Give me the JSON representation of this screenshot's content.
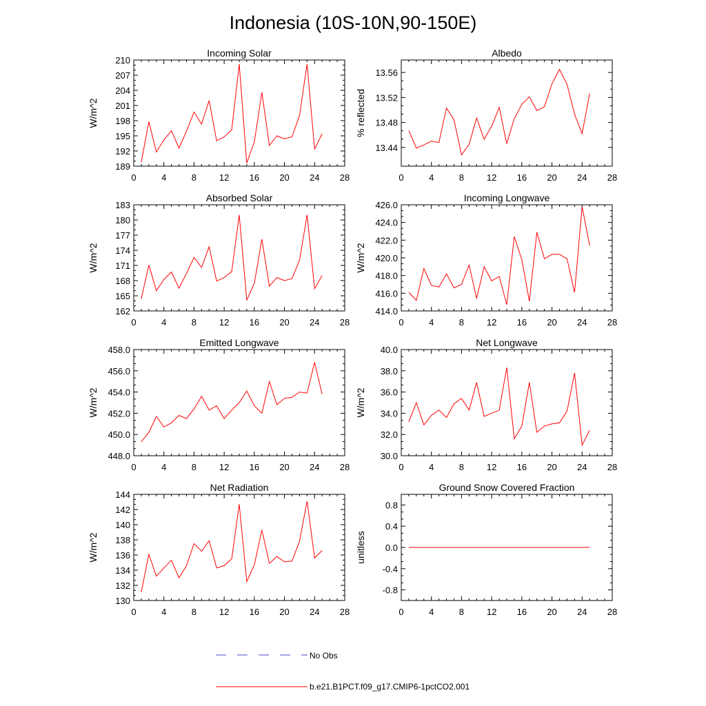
{
  "figure_title": "Indonesia (10S-10N,90-150E)",
  "colors": {
    "model": "#ff0000",
    "obs": "#4a4ac8",
    "axis": "#000000"
  },
  "legend": {
    "obs_label": "No Obs",
    "model_label": "b.e21.B1PCT.f09_g17.CMIP6-1pctCO2.001"
  },
  "chart_data": [
    {
      "type": "line",
      "title": "Incoming Solar",
      "ylabel": "W/m^2",
      "xlabel": "",
      "xlim": [
        0,
        28
      ],
      "xticks": [
        "0",
        "4",
        "8",
        "12",
        "16",
        "20",
        "24",
        "28"
      ],
      "ylim": [
        189,
        210
      ],
      "yticks": [
        "189",
        "192",
        "195",
        "198",
        "201",
        "204",
        "207",
        "210"
      ],
      "grid": false,
      "series": [
        {
          "name": "b.e21.B1PCT.f09_g17.CMIP6-1pctCO2.001",
          "x": [
            1,
            2,
            3,
            4,
            5,
            6,
            7,
            8,
            9,
            10,
            11,
            12,
            13,
            14,
            15,
            16,
            17,
            18,
            19,
            20,
            21,
            22,
            23,
            24,
            25
          ],
          "values": [
            189.8,
            197.8,
            191.8,
            194.2,
            196.0,
            192.6,
            195.9,
            199.7,
            197.3,
            202.0,
            194.0,
            194.8,
            196.2,
            209.2,
            189.6,
            193.8,
            203.6,
            193.1,
            195.0,
            194.4,
            194.8,
            199.0,
            209.2,
            192.4,
            195.4
          ]
        }
      ]
    },
    {
      "type": "line",
      "title": "Albedo",
      "ylabel": "% reflected",
      "xlabel": "",
      "xlim": [
        0,
        28
      ],
      "xticks": [
        "0",
        "4",
        "8",
        "12",
        "16",
        "20",
        "24",
        "28"
      ],
      "ylim": [
        13.41,
        13.58
      ],
      "yticks": [
        "13.44",
        "13.48",
        "13.52",
        "13.56"
      ],
      "grid": false,
      "series": [
        {
          "name": "b.e21.B1PCT.f09_g17.CMIP6-1pctCO2.001",
          "x": [
            1,
            2,
            3,
            4,
            5,
            6,
            7,
            8,
            9,
            10,
            11,
            12,
            13,
            14,
            15,
            16,
            17,
            18,
            19,
            20,
            21,
            22,
            23,
            24,
            25
          ],
          "values": [
            13.467,
            13.439,
            13.444,
            13.45,
            13.448,
            13.503,
            13.484,
            13.428,
            13.445,
            13.487,
            13.453,
            13.474,
            13.504,
            13.446,
            13.486,
            13.509,
            13.521,
            13.499,
            13.505,
            13.542,
            13.565,
            13.541,
            13.493,
            13.462,
            13.526
          ]
        }
      ]
    },
    {
      "type": "line",
      "title": "Absorbed Solar",
      "ylabel": "W/m^2",
      "xlabel": "",
      "xlim": [
        0,
        28
      ],
      "xticks": [
        "0",
        "4",
        "8",
        "12",
        "16",
        "20",
        "24",
        "28"
      ],
      "ylim": [
        162,
        183
      ],
      "yticks": [
        "162",
        "165",
        "168",
        "171",
        "174",
        "177",
        "180",
        "183"
      ],
      "grid": false,
      "series": [
        {
          "name": "b.e21.B1PCT.f09_g17.CMIP6-1pctCO2.001",
          "x": [
            1,
            2,
            3,
            4,
            5,
            6,
            7,
            8,
            9,
            10,
            11,
            12,
            13,
            14,
            15,
            16,
            17,
            18,
            19,
            20,
            21,
            22,
            23,
            24,
            25
          ],
          "values": [
            164.4,
            171.1,
            166.0,
            168.2,
            169.7,
            166.5,
            169.4,
            172.6,
            170.6,
            174.7,
            167.9,
            168.6,
            169.8,
            181.0,
            164.1,
            167.5,
            176.2,
            166.9,
            168.6,
            168.0,
            168.4,
            172.0,
            181.0,
            166.4,
            169.0
          ]
        }
      ]
    },
    {
      "type": "line",
      "title": "Incoming Longwave",
      "ylabel": "W/m^2",
      "xlabel": "",
      "xlim": [
        0,
        28
      ],
      "xticks": [
        "0",
        "4",
        "8",
        "12",
        "16",
        "20",
        "24",
        "28"
      ],
      "ylim": [
        414.0,
        426.0
      ],
      "yticks": [
        "414.0",
        "416.0",
        "418.0",
        "420.0",
        "422.0",
        "424.0",
        "426.0"
      ],
      "grid": false,
      "series": [
        {
          "name": "b.e21.B1PCT.f09_g17.CMIP6-1pctCO2.001",
          "x": [
            1,
            2,
            3,
            4,
            5,
            6,
            7,
            8,
            9,
            10,
            11,
            12,
            13,
            14,
            15,
            16,
            17,
            18,
            19,
            20,
            21,
            22,
            23,
            24,
            25
          ],
          "values": [
            416.1,
            415.2,
            418.8,
            416.9,
            416.7,
            418.2,
            416.6,
            417.0,
            419.2,
            415.4,
            419.0,
            417.4,
            417.9,
            414.7,
            422.4,
            419.8,
            415.1,
            422.9,
            419.9,
            420.4,
            420.4,
            419.9,
            416.1,
            425.8,
            421.4
          ]
        }
      ]
    },
    {
      "type": "line",
      "title": "Emitted Longwave",
      "ylabel": "W/m^2",
      "xlabel": "",
      "xlim": [
        0,
        28
      ],
      "xticks": [
        "0",
        "4",
        "8",
        "12",
        "16",
        "20",
        "24",
        "28"
      ],
      "ylim": [
        448.0,
        458.0
      ],
      "yticks": [
        "448.0",
        "450.0",
        "452.0",
        "454.0",
        "456.0",
        "458.0"
      ],
      "grid": false,
      "series": [
        {
          "name": "b.e21.B1PCT.f09_g17.CMIP6-1pctCO2.001",
          "x": [
            1,
            2,
            3,
            4,
            5,
            6,
            7,
            8,
            9,
            10,
            11,
            12,
            13,
            14,
            15,
            16,
            17,
            18,
            19,
            20,
            21,
            22,
            23,
            24,
            25
          ],
          "values": [
            449.3,
            450.2,
            451.7,
            450.7,
            451.1,
            451.8,
            451.5,
            452.4,
            453.6,
            452.3,
            452.7,
            451.5,
            452.3,
            453.0,
            454.1,
            452.7,
            452.0,
            455.0,
            452.8,
            453.4,
            453.5,
            454.0,
            453.9,
            456.8,
            453.8
          ]
        }
      ]
    },
    {
      "type": "line",
      "title": "Net Longwave",
      "ylabel": "W/m^2",
      "xlabel": "",
      "xlim": [
        0,
        28
      ],
      "xticks": [
        "0",
        "4",
        "8",
        "12",
        "16",
        "20",
        "24",
        "28"
      ],
      "ylim": [
        30.0,
        40.0
      ],
      "yticks": [
        "30.0",
        "32.0",
        "34.0",
        "36.0",
        "38.0",
        "40.0"
      ],
      "grid": false,
      "series": [
        {
          "name": "b.e21.B1PCT.f09_g17.CMIP6-1pctCO2.001",
          "x": [
            1,
            2,
            3,
            4,
            5,
            6,
            7,
            8,
            9,
            10,
            11,
            12,
            13,
            14,
            15,
            16,
            17,
            18,
            19,
            20,
            21,
            22,
            23,
            24,
            25
          ],
          "values": [
            33.2,
            35.0,
            32.9,
            33.8,
            34.3,
            33.6,
            34.9,
            35.4,
            34.3,
            36.9,
            33.7,
            34.0,
            34.3,
            38.3,
            31.6,
            32.8,
            36.9,
            32.2,
            32.8,
            33.0,
            33.1,
            34.2,
            37.8,
            31.0,
            32.4
          ]
        }
      ]
    },
    {
      "type": "line",
      "title": "Net Radiation",
      "ylabel": "W/m^2",
      "xlabel": "",
      "xlim": [
        0,
        28
      ],
      "xticks": [
        "0",
        "4",
        "8",
        "12",
        "16",
        "20",
        "24",
        "28"
      ],
      "ylim": [
        130,
        144
      ],
      "yticks": [
        "130",
        "132",
        "134",
        "136",
        "138",
        "140",
        "142",
        "144"
      ],
      "grid": false,
      "series": [
        {
          "name": "b.e21.B1PCT.f09_g17.CMIP6-1pctCO2.001",
          "x": [
            1,
            2,
            3,
            4,
            5,
            6,
            7,
            8,
            9,
            10,
            11,
            12,
            13,
            14,
            15,
            16,
            17,
            18,
            19,
            20,
            21,
            22,
            23,
            24,
            25
          ],
          "values": [
            131.1,
            136.1,
            133.2,
            134.3,
            135.3,
            133.0,
            134.6,
            137.5,
            136.5,
            137.9,
            134.3,
            134.6,
            135.5,
            142.7,
            132.5,
            134.7,
            139.3,
            134.9,
            135.8,
            135.1,
            135.2,
            137.8,
            143.1,
            135.6,
            136.6
          ]
        }
      ]
    },
    {
      "type": "line",
      "title": "Ground Snow Covered Fraction",
      "ylabel": "unitless",
      "xlabel": "",
      "xlim": [
        0,
        28
      ],
      "xticks": [
        "0",
        "4",
        "8",
        "12",
        "16",
        "20",
        "24",
        "28"
      ],
      "ylim": [
        -1.0,
        1.0
      ],
      "yticks": [
        "-0.8",
        "-0.4",
        "0.0",
        "0.4",
        "0.8"
      ],
      "grid": false,
      "series": [
        {
          "name": "b.e21.B1PCT.f09_g17.CMIP6-1pctCO2.001",
          "x": [
            1,
            25
          ],
          "values": [
            0.0,
            0.0
          ]
        }
      ]
    }
  ]
}
